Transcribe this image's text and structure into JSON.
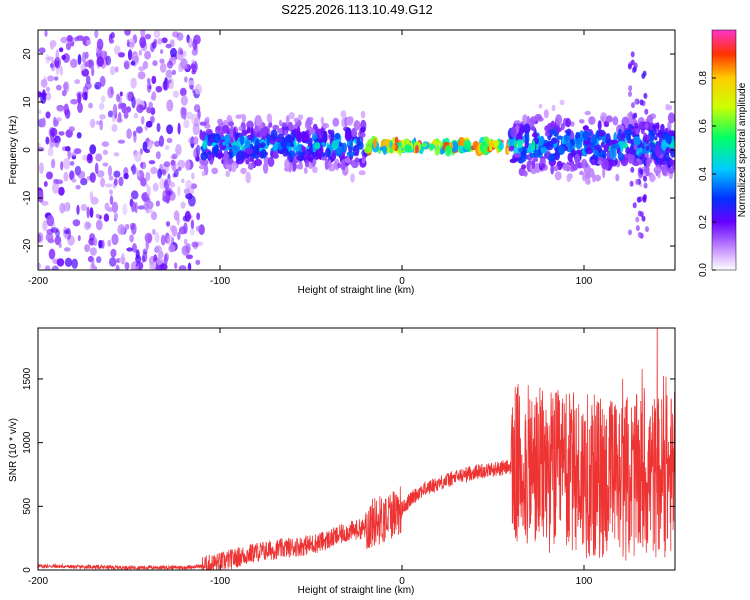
{
  "chart_data": [
    {
      "type": "heatmap",
      "title": "S225.2026.113.10.49.G12",
      "xlabel": "Height of straight line (km)",
      "ylabel": "Frequency (Hz)",
      "xlim": [
        -200,
        150
      ],
      "ylim": [
        -25,
        25
      ],
      "x_ticks": [
        -200,
        -100,
        0,
        100
      ],
      "y_ticks": [
        -20,
        -10,
        0,
        10,
        20
      ],
      "colorbar": {
        "label": "Normalized spectral amplitude",
        "range": [
          0,
          1
        ],
        "ticks": [
          "0.0",
          "0.2",
          "0.4",
          "0.6",
          "0.8"
        ],
        "tick_values": [
          0,
          0.2,
          0.4,
          0.6,
          0.8
        ]
      },
      "description_regions": [
        {
          "x_range": [
            -200,
            -110
          ],
          "freq_spread": 25,
          "amplitude": 0.1,
          "density": "scattered noise"
        },
        {
          "x_range": [
            -110,
            -20
          ],
          "freq_spread": 8,
          "amplitude": 0.2,
          "density": "broad band"
        },
        {
          "x_range": [
            -20,
            60
          ],
          "freq_spread": 1,
          "amplitude": 0.8,
          "density": "narrow line"
        },
        {
          "x_range": [
            60,
            150
          ],
          "freq_spread": 10,
          "amplitude": 0.3,
          "density": "broad band"
        }
      ]
    },
    {
      "type": "line",
      "xlabel": "Height of straight line (km)",
      "ylabel": "SNR (10 * v/v)",
      "xlim": [
        -200,
        150
      ],
      "ylim": [
        0,
        1900
      ],
      "x_ticks": [
        -200,
        -100,
        0,
        100
      ],
      "y_ticks": [
        0,
        500,
        1000,
        1500
      ],
      "color": "#ee3333",
      "series": [
        {
          "name": "SNR",
          "x": [
            -200,
            -190,
            -180,
            -170,
            -160,
            -150,
            -140,
            -130,
            -120,
            -110,
            -100,
            -90,
            -80,
            -70,
            -60,
            -50,
            -40,
            -30,
            -20,
            -15,
            -10,
            -5,
            0,
            5,
            10,
            20,
            30,
            40,
            50,
            55,
            60,
            65,
            70,
            80,
            90,
            100,
            110,
            120,
            130,
            140,
            150
          ],
          "values": [
            30,
            30,
            25,
            25,
            20,
            20,
            20,
            20,
            20,
            30,
            60,
            100,
            140,
            160,
            180,
            200,
            240,
            300,
            330,
            380,
            400,
            450,
            480,
            560,
            620,
            680,
            730,
            770,
            790,
            800,
            810,
            820,
            800,
            780,
            760,
            740,
            720,
            720,
            730,
            740,
            750
          ]
        }
      ],
      "noise_amplitude": [
        {
          "x_range": [
            -200,
            -110
          ],
          "amplitude": 15
        },
        {
          "x_range": [
            -110,
            -20
          ],
          "amplitude": 80
        },
        {
          "x_range": [
            -20,
            0
          ],
          "amplitude": 200
        },
        {
          "x_range": [
            0,
            60
          ],
          "amplitude": 60
        },
        {
          "x_range": [
            60,
            150
          ],
          "amplitude": 650
        }
      ]
    }
  ]
}
